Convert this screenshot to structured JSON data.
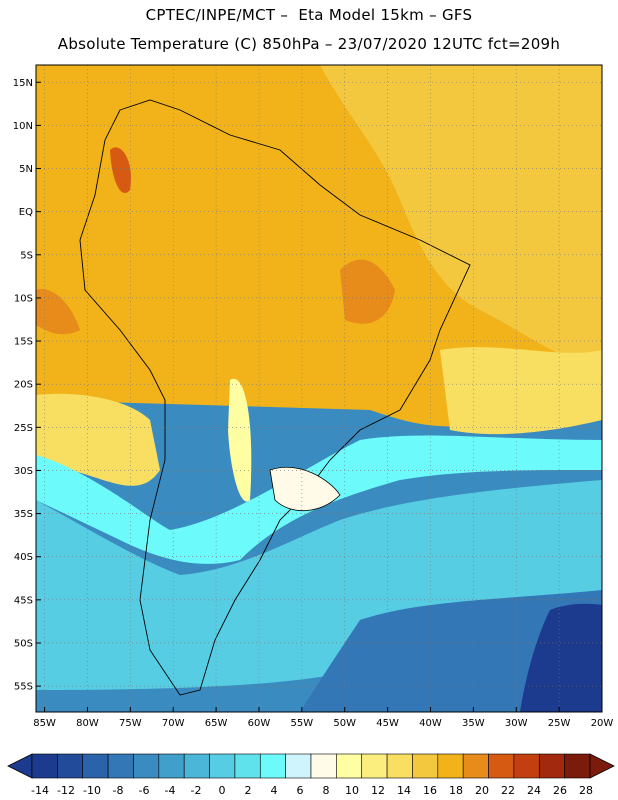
{
  "header": {
    "line1": "CPTEC/INPE/MCT –  Eta Model 15km – GFS",
    "line2": "Absolute Temperature (C) 850hPa – 23/07/2020 12UTC fct=209h"
  },
  "map": {
    "lat_ticks": [
      "15N",
      "10N",
      "5N",
      "EQ",
      "5S",
      "10S",
      "15S",
      "20S",
      "25S",
      "30S",
      "35S",
      "40S",
      "45S",
      "50S",
      "55S"
    ],
    "lat_values": [
      15,
      10,
      5,
      0,
      -5,
      -10,
      -15,
      -20,
      -25,
      -30,
      -35,
      -40,
      -45,
      -50,
      -55
    ],
    "lon_ticks": [
      "85W",
      "80W",
      "75W",
      "70W",
      "65W",
      "60W",
      "55W",
      "50W",
      "45W",
      "40W",
      "35W",
      "30W",
      "25W",
      "20W"
    ],
    "lon_values": [
      -85,
      -80,
      -75,
      -70,
      -65,
      -60,
      -55,
      -50,
      -45,
      -40,
      -35,
      -30,
      -25,
      -20
    ],
    "lon_range": [
      -86,
      -20
    ],
    "lat_range": [
      -58,
      17
    ],
    "grid": "dotted"
  },
  "colorbar": {
    "labels": [
      "-14",
      "-12",
      "-10",
      "-8",
      "-6",
      "-4",
      "-2",
      "0",
      "2",
      "4",
      "6",
      "8",
      "10",
      "12",
      "14",
      "16",
      "18",
      "20",
      "22",
      "24",
      "26",
      "28"
    ],
    "colors": [
      "#1c3a8e",
      "#224c99",
      "#2a63a9",
      "#3377b6",
      "#3a8cc0",
      "#41a0cb",
      "#4cb6d8",
      "#56cde3",
      "#5fe2ec",
      "#6dfafa",
      "#cff4fb",
      "#fffbe8",
      "#fffea3",
      "#fbee7f",
      "#f8df62",
      "#f3c83e",
      "#f1b319",
      "#e78b1b",
      "#d65a12",
      "#c43f0f",
      "#a2280e",
      "#7a1b0c"
    ]
  }
}
